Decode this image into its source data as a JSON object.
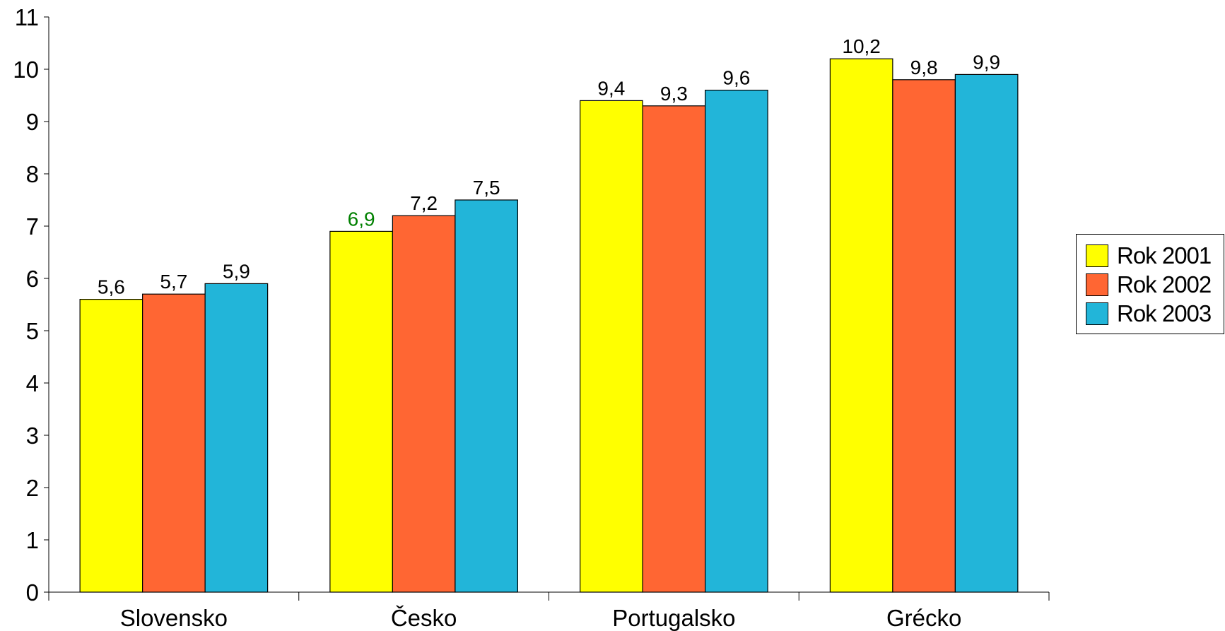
{
  "chart_data": {
    "type": "bar",
    "categories": [
      "Slovensko",
      "Česko",
      "Portugalsko",
      "Grécko"
    ],
    "series": [
      {
        "name": "Rok  2001",
        "values": [
          5.6,
          6.9,
          9.4,
          10.2
        ],
        "labels": [
          "5,6",
          "6,9",
          "9,4",
          "10,2"
        ],
        "color": "#FFFF00"
      },
      {
        "name": "Rok  2002",
        "values": [
          5.7,
          7.2,
          9.3,
          9.8
        ],
        "labels": [
          "5,7",
          "7,2",
          "9,3",
          "9,8"
        ],
        "color": "#FF6633"
      },
      {
        "name": "Rok  2003",
        "values": [
          5.9,
          7.5,
          9.6,
          9.9
        ],
        "labels": [
          "5,9",
          "7,5",
          "9,6",
          "9,9"
        ],
        "color": "#22B5D9"
      }
    ],
    "highlight_label": {
      "series": 0,
      "category": 1,
      "color": "#008000"
    },
    "yticks": [
      "0",
      "1",
      "2",
      "3",
      "4",
      "5",
      "6",
      "7",
      "8",
      "9",
      "10",
      "11"
    ],
    "ylim": [
      0,
      11
    ],
    "grid": false,
    "legend_position": "right"
  }
}
